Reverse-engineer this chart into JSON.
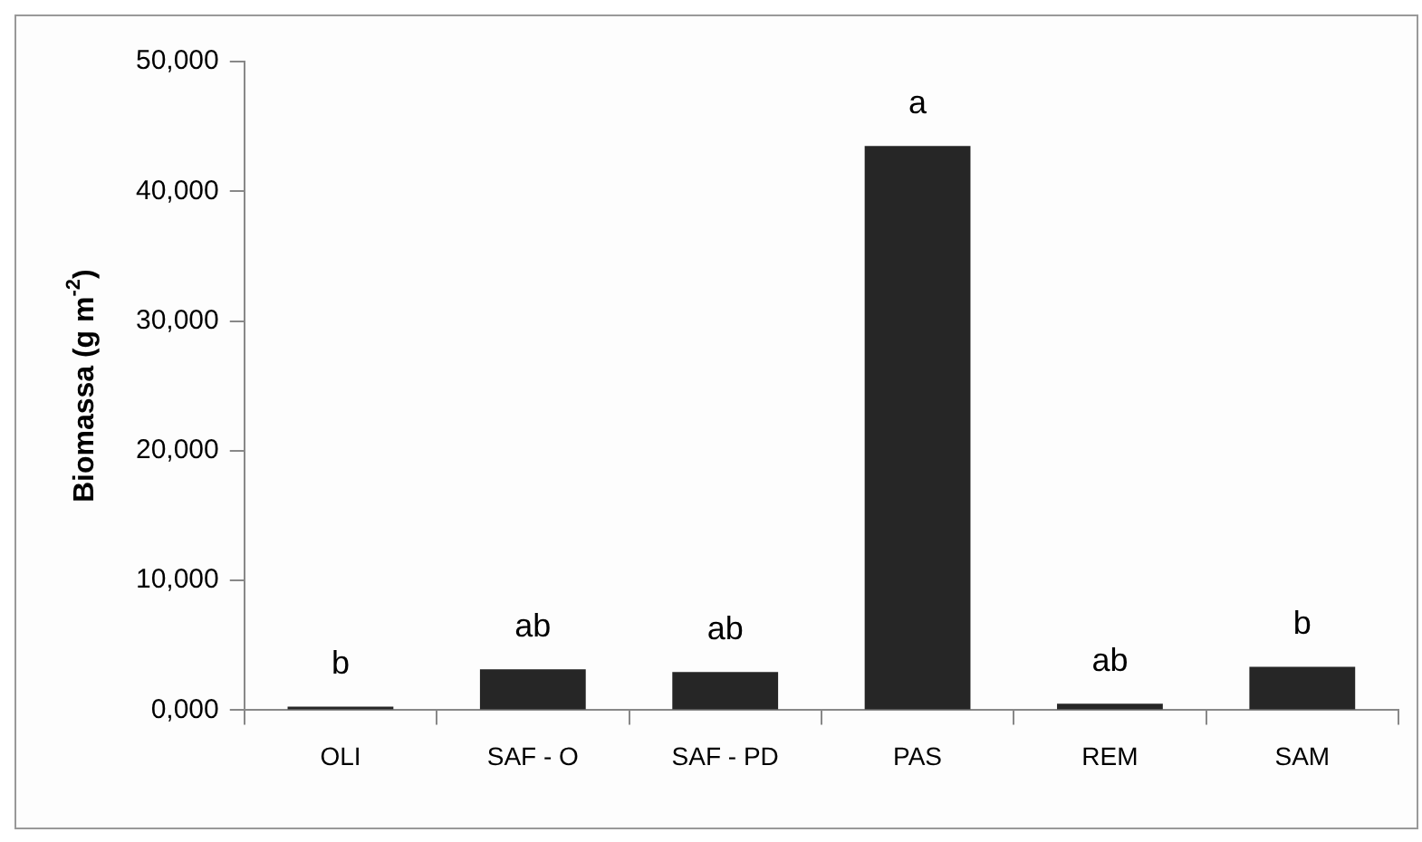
{
  "chart_data": {
    "type": "bar",
    "ylabel": "Biomassa (g m$^{-2}$)",
    "categories": [
      "OLI",
      "SAF - O",
      "SAF - PD",
      "PAS",
      "REM",
      "SAM"
    ],
    "values": [
      280,
      3150,
      2950,
      43500,
      500,
      3350
    ],
    "color": "#262626",
    "ylim": [
      0,
      50000
    ],
    "yticks": [
      {
        "value": 0,
        "label": "0,000"
      },
      {
        "value": 10000,
        "label": "10,000"
      },
      {
        "value": 20000,
        "label": "20,000"
      },
      {
        "value": 30000,
        "label": "30,000"
      },
      {
        "value": 40000,
        "label": "40,000"
      },
      {
        "value": 50000,
        "label": "50,000"
      }
    ],
    "grid": false,
    "legend": false,
    "annotations": [
      {
        "text": "b",
        "x": "OLI",
        "y": 280
      },
      {
        "text": "ab",
        "x": "SAF - O",
        "y": 3150
      },
      {
        "text": "ab",
        "x": "SAF - PD",
        "y": 2950
      },
      {
        "text": "a",
        "x": "PAS",
        "y": 43500
      },
      {
        "text": "ab",
        "x": "REM",
        "y": 500
      },
      {
        "text": "b",
        "x": "SAM",
        "y": 3350
      }
    ]
  }
}
